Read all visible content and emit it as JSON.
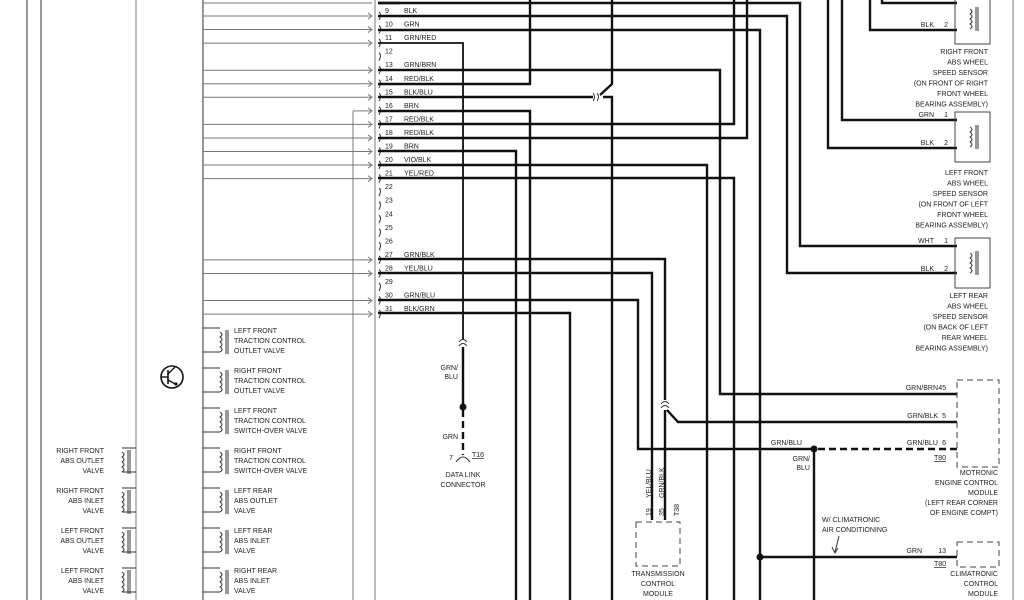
{
  "connector": {
    "pins": [
      {
        "n": "9",
        "wire": "BLK"
      },
      {
        "n": "10",
        "wire": "GRN"
      },
      {
        "n": "11",
        "wire": "GRN/RED"
      },
      {
        "n": "12",
        "wire": ""
      },
      {
        "n": "13",
        "wire": "GRN/BRN"
      },
      {
        "n": "14",
        "wire": "RED/BLK"
      },
      {
        "n": "15",
        "wire": "BLK/BLU"
      },
      {
        "n": "16",
        "wire": "BRN"
      },
      {
        "n": "17",
        "wire": "RED/BLK"
      },
      {
        "n": "18",
        "wire": "RED/BLK"
      },
      {
        "n": "19",
        "wire": "BRN"
      },
      {
        "n": "20",
        "wire": "VIO/BLK"
      },
      {
        "n": "21",
        "wire": "YEL/RED"
      },
      {
        "n": "22",
        "wire": ""
      },
      {
        "n": "23",
        "wire": ""
      },
      {
        "n": "24",
        "wire": ""
      },
      {
        "n": "25",
        "wire": ""
      },
      {
        "n": "26",
        "wire": ""
      },
      {
        "n": "27",
        "wire": "GRN/BLK"
      },
      {
        "n": "28",
        "wire": "YEL/BLU"
      },
      {
        "n": "29",
        "wire": ""
      },
      {
        "n": "30",
        "wire": "GRN/BLU"
      },
      {
        "n": "31",
        "wire": "BLK/GRN"
      }
    ]
  },
  "sensors": {
    "right_front": {
      "pin2_wire": "BLK",
      "pin2": "2",
      "lines": [
        "RIGHT FRONT",
        "ABS WHEEL",
        "SPEED SENSOR",
        "(ON FRONT OF RIGHT",
        "FRONT WHEEL",
        "BEARING ASSEMBLY)"
      ]
    },
    "left_front": {
      "pin1_wire": "GRN",
      "pin1": "1",
      "pin2_wire": "BLK",
      "pin2": "2",
      "lines": [
        "LEFT FRONT",
        "ABS WHEEL",
        "SPEED SENSOR",
        "(ON FRONT OF LEFT",
        "FRONT WHEEL",
        "BEARING ASSEMBLY)"
      ]
    },
    "left_rear": {
      "pin1_wire": "WHT",
      "pin1": "1",
      "pin2_wire": "BLK",
      "pin2": "2",
      "lines": [
        "LEFT REAR",
        "ABS WHEEL",
        "SPEED SENSOR",
        "(ON BACK OF LEFT",
        "REAR WHEEL",
        "BEARING ASSEMBLY)"
      ]
    }
  },
  "valves_left": [
    [
      "RIGHT FRONT",
      "ABS OUTLET",
      "VALVE"
    ],
    [
      "RIGHT FRONT",
      "ABS INLET",
      "VALVE"
    ],
    [
      "LEFT FRONT",
      "ABS OUTLET",
      "VALVE"
    ],
    [
      "LEFT FRONT",
      "ABS INLET",
      "VALVE"
    ]
  ],
  "valves_right": [
    [
      "LEFT FRONT",
      "TRACTION CONTROL",
      "OUTLET VALVE"
    ],
    [
      "RIGHT FRONT",
      "TRACTION CONTROL",
      "OUTLET VALVE"
    ],
    [
      "LEFT FRONT",
      "TRACTION CONTROL",
      "SWITCH-OVER VALVE"
    ],
    [
      "RIGHT FRONT",
      "TRACTION CONTROL",
      "SWITCH-OVER VALVE"
    ],
    [
      "LEFT REAR",
      "ABS OUTLET",
      "VALVE"
    ],
    [
      "LEFT REAR",
      "ABS INLET",
      "VALVE"
    ],
    [
      "RIGHT REAR",
      "ABS INLET",
      "VALVE"
    ]
  ],
  "data_link": {
    "wire_top": [
      "GRN/",
      "BLU"
    ],
    "wire_bottom": "GRN",
    "pin": "7",
    "conn": "T16",
    "lines": [
      "DATA LINK",
      "CONNECTOR"
    ]
  },
  "motronic": {
    "pins": [
      {
        "wire": "GRN/BRN",
        "n": "45"
      },
      {
        "wire": "GRN/BLK",
        "n": "5"
      },
      {
        "wire": "GRN/BLU",
        "n": "6"
      }
    ],
    "conn": "T80",
    "splice_wire": "GRN/BLU",
    "down_wire": [
      "GRN/",
      "BLU"
    ],
    "lines": [
      "MOTRONIC",
      "ENGINE CONTROL",
      "MODULE",
      "(LEFT REAR CORNER",
      "OF ENGINE COMPT)"
    ]
  },
  "tcm": {
    "wires": [
      "YEL/BLU",
      "GRN/BLK"
    ],
    "pins": [
      "19",
      "35"
    ],
    "conn": "T38",
    "lines": [
      "TRANSMISSION",
      "CONTROL",
      "MODULE"
    ]
  },
  "climatronic": {
    "note": [
      "W/ CLIMATRONIC",
      "AIR CONDITIONING"
    ],
    "wire": "GRN",
    "pin": "13",
    "conn": "T80",
    "lines": [
      "CLIMATRONIC",
      "CONTROL",
      "MODULE"
    ]
  }
}
